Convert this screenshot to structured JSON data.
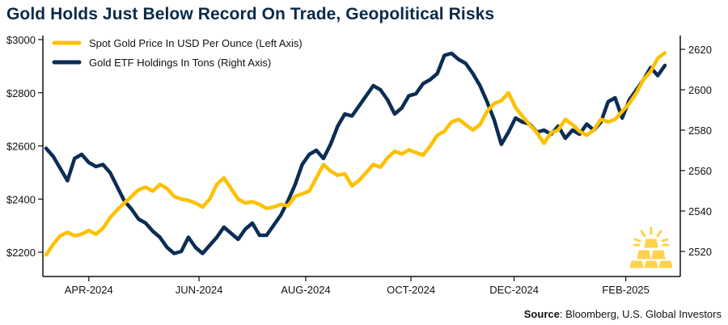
{
  "title": "Gold Holds Just Below Record On Trade, Geopolitical Risks",
  "source_label": "Source",
  "source_text": ": Bloomberg, U.S. Global Investors",
  "colors": {
    "gold": "#FFC000",
    "etf": "#0B2D55",
    "icon": "#FFD24D",
    "title": "#0b2a4a"
  },
  "icon": "gold-bars-icon",
  "chart_data": {
    "type": "line",
    "title": "Gold Holds Just Below Record On Trade, Geopolitical Risks",
    "xlabel": "",
    "ylabel_left": "Spot Gold Price (USD/oz)",
    "ylabel_right": "Gold ETF Holdings (tons)",
    "x_tick_labels": [
      "APR-2024",
      "JUN-2024",
      "AUG-2024",
      "OCT-2024",
      "DEC-2024",
      "FEB-2025"
    ],
    "x_tick_index": [
      6,
      21.5,
      36.5,
      51.3,
      65.8,
      81.5
    ],
    "y_left_ticks": [
      "$2200",
      "$2400",
      "$2600",
      "$2800",
      "$3000"
    ],
    "y_left_tick_values": [
      2200,
      2400,
      2600,
      2800,
      3000
    ],
    "ylim_left": [
      2110,
      3000
    ],
    "y_right_ticks": [
      "2520",
      "2540",
      "2560",
      "2580",
      "2600",
      "2620"
    ],
    "y_right_tick_values": [
      2520,
      2540,
      2560,
      2580,
      2600,
      2620
    ],
    "ylim_right": [
      2508,
      2624
    ],
    "legend_position": "top-left",
    "grid": false,
    "series": [
      {
        "name": "Spot Gold Price In USD Per Ounce (Left Axis)",
        "axis": "left",
        "values": [
          2190,
          2230,
          2262,
          2275,
          2262,
          2268,
          2282,
          2268,
          2290,
          2330,
          2360,
          2385,
          2410,
          2435,
          2445,
          2430,
          2455,
          2440,
          2410,
          2400,
          2395,
          2385,
          2370,
          2400,
          2455,
          2480,
          2440,
          2400,
          2385,
          2390,
          2380,
          2365,
          2370,
          2380,
          2375,
          2410,
          2420,
          2430,
          2480,
          2530,
          2505,
          2490,
          2495,
          2450,
          2470,
          2500,
          2530,
          2520,
          2555,
          2580,
          2570,
          2585,
          2575,
          2565,
          2600,
          2640,
          2655,
          2690,
          2700,
          2680,
          2660,
          2680,
          2730,
          2760,
          2770,
          2800,
          2745,
          2710,
          2680,
          2650,
          2610,
          2650,
          2660,
          2700,
          2680,
          2655,
          2640,
          2660,
          2700,
          2690,
          2700,
          2730,
          2760,
          2800,
          2850,
          2880,
          2930,
          2950
        ]
      },
      {
        "name": "Gold ETF Holdings In Tons (Right Axis)",
        "axis": "right",
        "values": [
          2571,
          2567,
          2561,
          2555,
          2566,
          2568,
          2564,
          2562,
          2563,
          2559,
          2552,
          2545,
          2541,
          2536,
          2534,
          2530,
          2527,
          2522,
          2519,
          2520,
          2527,
          2522,
          2519,
          2523,
          2527,
          2532,
          2529,
          2526,
          2531,
          2534,
          2528,
          2528,
          2533,
          2538,
          2545,
          2553,
          2563,
          2568,
          2570,
          2566,
          2573,
          2582,
          2588,
          2587,
          2592,
          2597,
          2602,
          2600,
          2595,
          2588,
          2591,
          2597,
          2598,
          2603,
          2605,
          2608,
          2617,
          2618,
          2615,
          2613,
          2608,
          2602,
          2594,
          2585,
          2573,
          2579,
          2586,
          2584,
          2583,
          2579,
          2580,
          2578,
          2582,
          2576,
          2580,
          2578,
          2583,
          2580,
          2584,
          2594,
          2596,
          2586,
          2595,
          2600,
          2605,
          2611,
          2607,
          2612
        ]
      }
    ]
  }
}
